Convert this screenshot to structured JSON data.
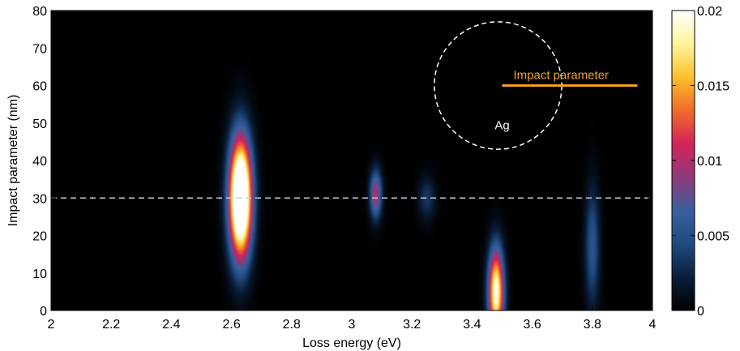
{
  "chart_data": {
    "type": "heatmap",
    "title": "",
    "xlabel": "Loss energy (eV)",
    "ylabel": "Impact parameter (nm)",
    "xlim": [
      2,
      4
    ],
    "ylim": [
      0,
      80
    ],
    "x_ticks": [
      "2",
      "2.2",
      "2.4",
      "2.6",
      "2.8",
      "3",
      "3.2",
      "3.4",
      "3.6",
      "3.8",
      "4"
    ],
    "y_ticks": [
      "0",
      "10",
      "20",
      "30",
      "40",
      "50",
      "60",
      "70",
      "80"
    ],
    "colorbar": {
      "range": [
        0,
        0.02
      ],
      "ticks": [
        "0",
        "0.005",
        "0.01",
        "0.015",
        "0.02"
      ]
    },
    "colormap": [
      "#000000",
      "#0b1e3a",
      "#1f4b80",
      "#3a5f9e",
      "#8e3a7a",
      "#d4235a",
      "#f26a2a",
      "#fbc02d",
      "#fff59a",
      "#ffffff"
    ],
    "peaks": [
      {
        "energy": 2.63,
        "impact": 30,
        "amplitude": 0.03,
        "energy_width": 0.026,
        "impact_width": 11
      },
      {
        "energy": 3.08,
        "impact": 31,
        "amplitude": 0.01,
        "energy_width": 0.014,
        "impact_width": 4.5
      },
      {
        "energy": 3.25,
        "impact": 30,
        "amplitude": 0.0035,
        "energy_width": 0.02,
        "impact_width": 4
      },
      {
        "energy": 3.48,
        "impact": 5,
        "amplitude": 0.02,
        "energy_width": 0.018,
        "impact_width": 8
      },
      {
        "energy": 3.8,
        "impact": 17,
        "amplitude": 0.0055,
        "energy_width": 0.017,
        "impact_width": 11
      }
    ],
    "reference_line": {
      "impact": 30,
      "style": "dashed",
      "color": "#cccccc"
    },
    "inset": {
      "circle_center": [
        3.5,
        60
      ],
      "circle_radius": 17,
      "circle_color": "#ffffff",
      "circle_label": "Ag",
      "impact_line": {
        "x_start": 3.5,
        "x_end": 3.95,
        "y": 60
      },
      "impact_line_label": "Impact  parameter",
      "impact_line_color": "#f0a020"
    }
  }
}
